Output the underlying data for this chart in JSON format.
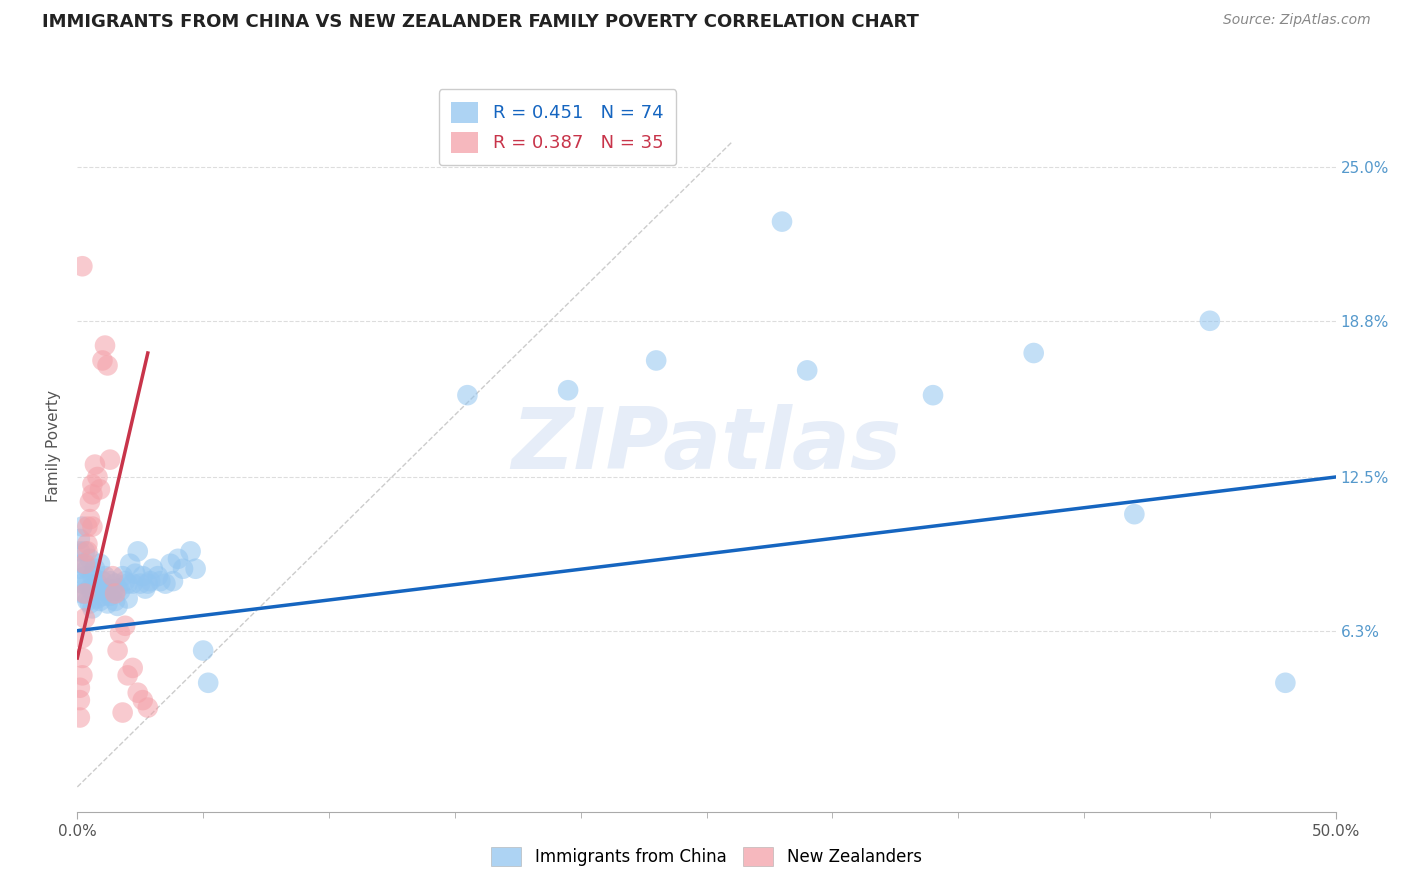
{
  "title": "IMMIGRANTS FROM CHINA VS NEW ZEALANDER FAMILY POVERTY CORRELATION CHART",
  "source_text": "Source: ZipAtlas.com",
  "ylabel": "Family Poverty",
  "xlim": [
    0.0,
    0.5
  ],
  "ylim": [
    -0.01,
    0.285
  ],
  "ytick_labels": [
    "6.3%",
    "12.5%",
    "18.8%",
    "25.0%"
  ],
  "ytick_positions": [
    0.063,
    0.125,
    0.188,
    0.25
  ],
  "legend_top": [
    "R = 0.451   N = 74",
    "R = 0.387   N = 35"
  ],
  "legend_bottom": [
    "Immigrants from China",
    "New Zealanders"
  ],
  "blue_color": "#92c5f0",
  "pink_color": "#f4a0a8",
  "blue_trend_color": "#1565c0",
  "pink_trend_color": "#c8344a",
  "watermark": "ZIPatlas",
  "blue_scatter_x": [
    0.001,
    0.001,
    0.001,
    0.002,
    0.002,
    0.002,
    0.002,
    0.003,
    0.003,
    0.003,
    0.004,
    0.004,
    0.004,
    0.005,
    0.005,
    0.005,
    0.006,
    0.006,
    0.006,
    0.007,
    0.007,
    0.008,
    0.008,
    0.009,
    0.009,
    0.01,
    0.01,
    0.011,
    0.011,
    0.012,
    0.012,
    0.013,
    0.013,
    0.014,
    0.015,
    0.015,
    0.016,
    0.016,
    0.017,
    0.018,
    0.019,
    0.02,
    0.02,
    0.021,
    0.022,
    0.023,
    0.024,
    0.025,
    0.026,
    0.027,
    0.028,
    0.029,
    0.03,
    0.032,
    0.033,
    0.035,
    0.037,
    0.038,
    0.04,
    0.042,
    0.045,
    0.047,
    0.05,
    0.052,
    0.155,
    0.195,
    0.23,
    0.28,
    0.29,
    0.34,
    0.38,
    0.42,
    0.45,
    0.48
  ],
  "blue_scatter_y": [
    0.095,
    0.088,
    0.1,
    0.105,
    0.09,
    0.082,
    0.078,
    0.095,
    0.085,
    0.078,
    0.088,
    0.082,
    0.075,
    0.092,
    0.08,
    0.074,
    0.085,
    0.079,
    0.072,
    0.088,
    0.08,
    0.082,
    0.076,
    0.09,
    0.075,
    0.083,
    0.077,
    0.085,
    0.079,
    0.08,
    0.074,
    0.083,
    0.077,
    0.079,
    0.082,
    0.075,
    0.08,
    0.073,
    0.079,
    0.085,
    0.083,
    0.082,
    0.076,
    0.09,
    0.082,
    0.086,
    0.095,
    0.082,
    0.085,
    0.08,
    0.082,
    0.083,
    0.088,
    0.085,
    0.083,
    0.082,
    0.09,
    0.083,
    0.092,
    0.088,
    0.095,
    0.088,
    0.055,
    0.042,
    0.158,
    0.16,
    0.172,
    0.228,
    0.168,
    0.158,
    0.175,
    0.11,
    0.188,
    0.042
  ],
  "pink_scatter_x": [
    0.001,
    0.001,
    0.001,
    0.002,
    0.002,
    0.002,
    0.003,
    0.003,
    0.003,
    0.004,
    0.004,
    0.004,
    0.005,
    0.005,
    0.006,
    0.006,
    0.006,
    0.007,
    0.008,
    0.009,
    0.01,
    0.011,
    0.012,
    0.013,
    0.014,
    0.015,
    0.016,
    0.017,
    0.018,
    0.019,
    0.02,
    0.022,
    0.024,
    0.026,
    0.028
  ],
  "pink_scatter_y": [
    0.028,
    0.04,
    0.035,
    0.06,
    0.052,
    0.045,
    0.068,
    0.078,
    0.09,
    0.098,
    0.105,
    0.095,
    0.115,
    0.108,
    0.122,
    0.118,
    0.105,
    0.13,
    0.125,
    0.12,
    0.172,
    0.178,
    0.17,
    0.132,
    0.085,
    0.078,
    0.055,
    0.062,
    0.03,
    0.065,
    0.045,
    0.048,
    0.038,
    0.035,
    0.032
  ],
  "pink_outlier_x": [
    0.002
  ],
  "pink_outlier_y": [
    0.21
  ],
  "blue_trend_x": [
    0.0,
    0.5
  ],
  "blue_trend_y": [
    0.063,
    0.125
  ],
  "pink_trend_x": [
    0.0,
    0.028
  ],
  "pink_trend_y": [
    0.052,
    0.175
  ],
  "ref_line_x": [
    0.0,
    0.26
  ],
  "ref_line_y": [
    0.0,
    0.26
  ]
}
